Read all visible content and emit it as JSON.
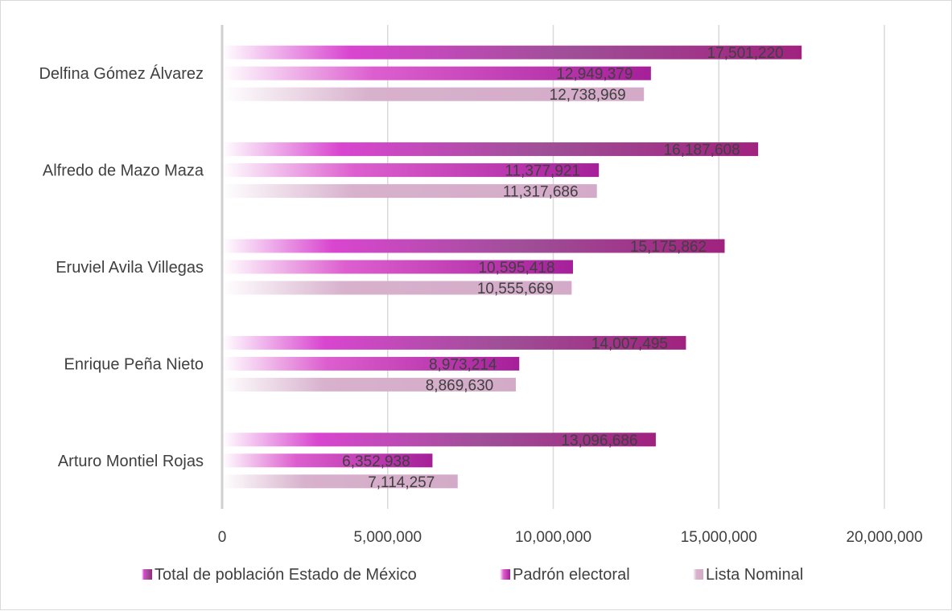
{
  "chart_data": {
    "type": "bar",
    "orientation": "horizontal",
    "title": "",
    "xlabel": "",
    "ylabel": "",
    "categories": [
      "Delfina Gómez Álvarez",
      "Alfredo de Mazo Maza",
      "Eruviel Avila Villegas",
      "Enrique Peña Nieto",
      "Arturo Montiel Rojas "
    ],
    "series": [
      {
        "name": "Total de población Estado de México",
        "color": "#a0227f",
        "values": [
          17501220,
          16187608,
          15175862,
          14007495,
          13096686
        ],
        "labels": [
          "17,501,220",
          "16,187,608",
          "15,175,862",
          "14,007,495",
          "13,096,686"
        ]
      },
      {
        "name": "Padrón electoral",
        "color": "#b42ea4",
        "values": [
          12949379,
          11377921,
          10595418,
          8973214,
          6352938
        ],
        "labels": [
          "12,949,379",
          "11,377,921",
          "10,595,418",
          "8,973,214",
          "6,352,938"
        ]
      },
      {
        "name": "Lista Nominal",
        "color": "#d6b2cc",
        "values": [
          12738969,
          11317686,
          10555669,
          8869630,
          7114257
        ],
        "labels": [
          "12,738,969",
          "11,317,686",
          "10,555,669",
          "8,869,630",
          "7,114,257"
        ]
      }
    ],
    "xlim": [
      0,
      20000000
    ],
    "xticks": [
      0,
      5000000,
      10000000,
      15000000,
      20000000
    ],
    "xtick_labels": [
      "0",
      "5,000,000",
      "10,000,000",
      "15,000,000",
      "20,000,000"
    ],
    "grid": true,
    "legend_position": "bottom"
  }
}
